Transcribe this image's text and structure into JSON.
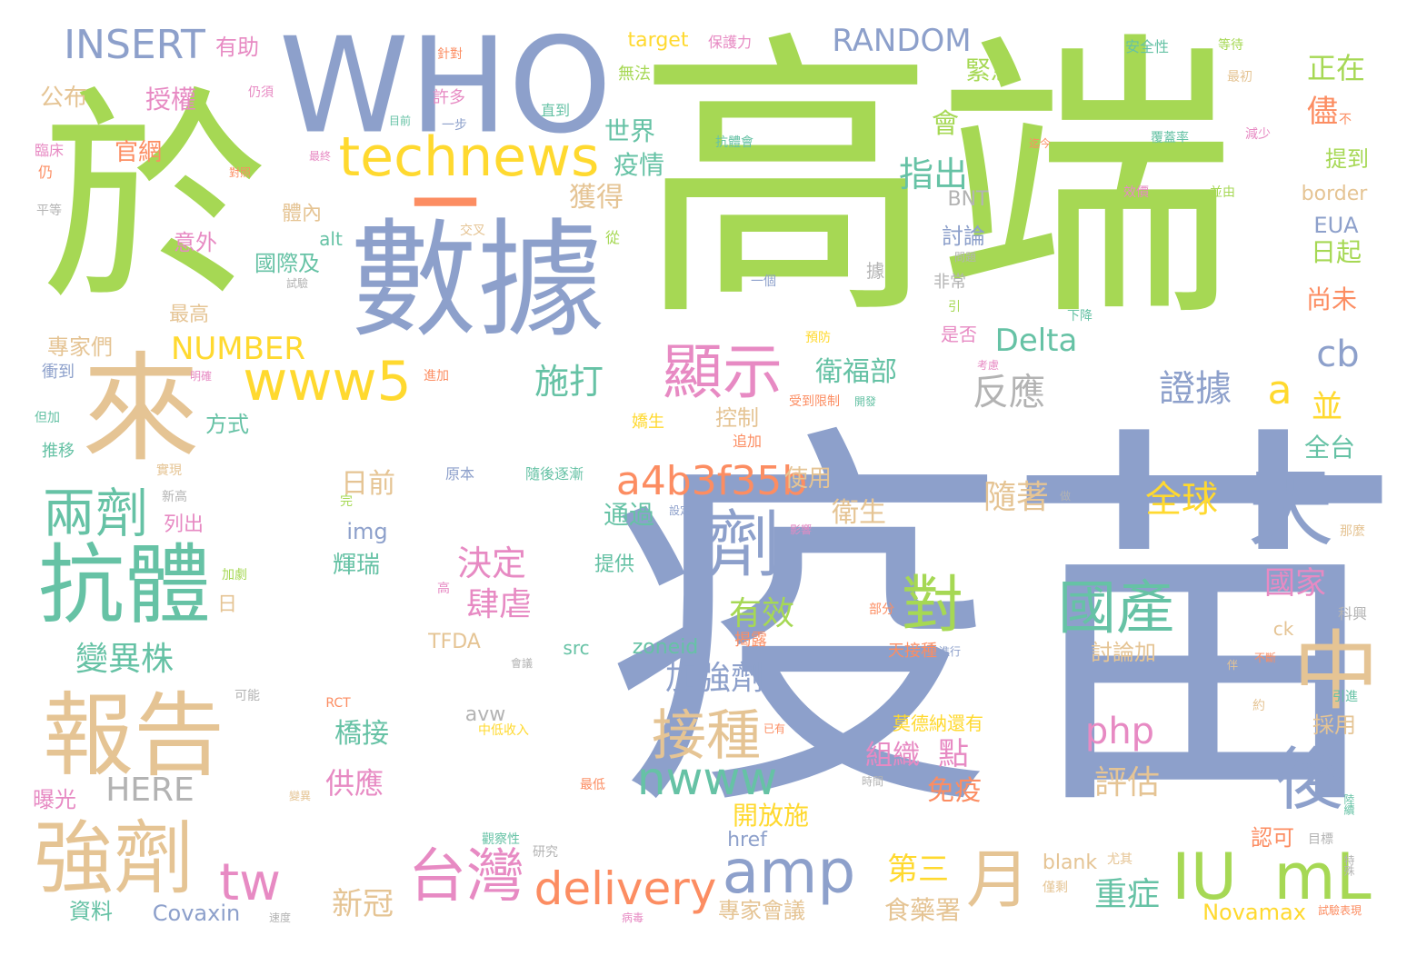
{
  "palette": {
    "slate_blue": "#8da0cb",
    "green": "#a6d854",
    "tan": "#e5c494",
    "pink": "#e78ac3",
    "yellow": "#ffd92f",
    "teal": "#66c2a5",
    "orange": "#fc8d62",
    "gray": "#b3b3b3"
  },
  "words": [
    {
      "text": "疫苗",
      "color": "#8da0cb"
    },
    {
      "text": "高端",
      "color": "#a6d854"
    },
    {
      "text": "於",
      "color": "#a6d854"
    },
    {
      "text": "WHO",
      "color": "#8da0cb"
    },
    {
      "text": "數據",
      "color": "#8da0cb"
    },
    {
      "text": "─",
      "color": "#fc8d62"
    },
    {
      "text": "來",
      "color": "#e5c494"
    },
    {
      "text": "抗體",
      "color": "#66c2a5"
    },
    {
      "text": "報告",
      "color": "#e5c494"
    },
    {
      "text": "強劑",
      "color": "#e5c494"
    },
    {
      "text": "兩劑",
      "color": "#66c2a5"
    },
    {
      "text": "technews",
      "color": "#ffd92f"
    },
    {
      "text": "www5",
      "color": "#ffd92f"
    },
    {
      "text": "顯示",
      "color": "#e78ac3"
    },
    {
      "text": "天",
      "color": "#8da0cb"
    },
    {
      "text": "劑",
      "color": "#8da0cb"
    },
    {
      "text": "中",
      "color": "#e5c494"
    },
    {
      "text": "後",
      "color": "#8da0cb"
    },
    {
      "text": "IU",
      "color": "#a6d854"
    },
    {
      "text": "mL",
      "color": "#a6d854"
    },
    {
      "text": "月",
      "color": "#e5c494"
    },
    {
      "text": "對",
      "color": "#a6d854"
    },
    {
      "text": "國產",
      "color": "#66c2a5"
    },
    {
      "text": "amp",
      "color": "#8da0cb"
    },
    {
      "text": "台灣",
      "color": "#e78ac3"
    },
    {
      "text": "delivery",
      "color": "#fc8d62"
    },
    {
      "text": "tw",
      "color": "#e78ac3"
    },
    {
      "text": "接種",
      "color": "#e5c494"
    },
    {
      "text": "a4b3f35b",
      "color": "#fc8d62"
    },
    {
      "text": "nwww",
      "color": "#66c2a5"
    },
    {
      "text": "INSERT",
      "color": "#8da0cb"
    },
    {
      "text": "RANDOM",
      "color": "#8da0cb"
    },
    {
      "text": "NUMBER",
      "color": "#ffd92f"
    },
    {
      "text": "HERE",
      "color": "#b3b3b3"
    },
    {
      "text": "Delta",
      "color": "#66c2a5"
    },
    {
      "text": "cb",
      "color": "#8da0cb"
    },
    {
      "text": "a",
      "color": "#ffd92f"
    },
    {
      "text": "php",
      "color": "#e78ac3"
    },
    {
      "text": "正在",
      "color": "#a6d854"
    },
    {
      "text": "儘",
      "color": "#fc8d62"
    },
    {
      "text": "緊急",
      "color": "#a6d854"
    },
    {
      "text": "會",
      "color": "#a6d854"
    },
    {
      "text": "世界",
      "color": "#66c2a5"
    },
    {
      "text": "疫情",
      "color": "#66c2a5"
    },
    {
      "text": "獲得",
      "color": "#e5c494"
    },
    {
      "text": "指出",
      "color": "#66c2a5"
    },
    {
      "text": "施打",
      "color": "#66c2a5"
    },
    {
      "text": "反應",
      "color": "#b3b3b3"
    },
    {
      "text": "衛福部",
      "color": "#66c2a5"
    },
    {
      "text": "證據",
      "color": "#8da0cb"
    },
    {
      "text": "全球",
      "color": "#ffd92f"
    },
    {
      "text": "國家",
      "color": "#e78ac3"
    },
    {
      "text": "並",
      "color": "#ffd92f"
    },
    {
      "text": "全台",
      "color": "#66c2a5"
    },
    {
      "text": "日起",
      "color": "#a6d854"
    },
    {
      "text": "尚未",
      "color": "#fc8d62"
    },
    {
      "text": "EUA",
      "color": "#8da0cb"
    },
    {
      "text": "BNT",
      "color": "#b3b3b3"
    },
    {
      "text": "border",
      "color": "#e5c494"
    },
    {
      "text": "提到",
      "color": "#a6d854"
    },
    {
      "text": "決定",
      "color": "#e78ac3"
    },
    {
      "text": "肆虐",
      "color": "#e78ac3"
    },
    {
      "text": "有效",
      "color": "#a6d854"
    },
    {
      "text": "加強劑",
      "color": "#8da0cb"
    },
    {
      "text": "變異株",
      "color": "#66c2a5"
    },
    {
      "text": "隨著",
      "color": "#e5c494"
    },
    {
      "text": "第三",
      "color": "#ffd92f"
    },
    {
      "text": "重症",
      "color": "#66c2a5"
    },
    {
      "text": "評估",
      "color": "#e5c494"
    },
    {
      "text": "組織",
      "color": "#e78ac3"
    },
    {
      "text": "點",
      "color": "#e78ac3"
    },
    {
      "text": "免疫",
      "color": "#fc8d62"
    },
    {
      "text": "供應",
      "color": "#e78ac3"
    },
    {
      "text": "新冠",
      "color": "#e5c494"
    },
    {
      "text": "食藥署",
      "color": "#e5c494"
    },
    {
      "text": "專家會議",
      "color": "#e5c494"
    },
    {
      "text": "Novamax",
      "color": "#ffd92f"
    },
    {
      "text": "Covaxin",
      "color": "#8da0cb"
    },
    {
      "text": "資料",
      "color": "#66c2a5"
    },
    {
      "text": "開放施",
      "color": "#ffd92f"
    },
    {
      "text": "橋接",
      "color": "#66c2a5"
    },
    {
      "text": "日前",
      "color": "#e5c494"
    },
    {
      "text": "使用",
      "color": "#e5c494"
    },
    {
      "text": "衛生",
      "color": "#e5c494"
    },
    {
      "text": "通過",
      "color": "#66c2a5"
    },
    {
      "text": "輝瑞",
      "color": "#66c2a5"
    },
    {
      "text": "img",
      "color": "#8da0cb"
    },
    {
      "text": "TFDA",
      "color": "#e5c494"
    },
    {
      "text": "src",
      "color": "#66c2a5"
    },
    {
      "text": "zoneid",
      "color": "#66c2a5"
    },
    {
      "text": "avw",
      "color": "#b3b3b3"
    },
    {
      "text": "href",
      "color": "#8da0cb"
    },
    {
      "text": "blank",
      "color": "#e5c494"
    },
    {
      "text": "target",
      "color": "#ffd92f"
    },
    {
      "text": "alt",
      "color": "#66c2a5"
    },
    {
      "text": "方式",
      "color": "#66c2a5"
    },
    {
      "text": "國際及",
      "color": "#66c2a5"
    },
    {
      "text": "意外",
      "color": "#e78ac3"
    },
    {
      "text": "體內",
      "color": "#e5c494"
    },
    {
      "text": "授權",
      "color": "#e78ac3"
    },
    {
      "text": "官網",
      "color": "#fc8d62"
    },
    {
      "text": "公布",
      "color": "#e5c494"
    },
    {
      "text": "有助",
      "color": "#e78ac3"
    },
    {
      "text": "最高",
      "color": "#e5c494"
    },
    {
      "text": "專家們",
      "color": "#e5c494"
    },
    {
      "text": "曝光",
      "color": "#e78ac3"
    },
    {
      "text": "衝到",
      "color": "#8da0cb"
    },
    {
      "text": "推移",
      "color": "#66c2a5"
    },
    {
      "text": "列出",
      "color": "#e78ac3"
    },
    {
      "text": "日",
      "color": "#e5c494"
    },
    {
      "text": "討論",
      "color": "#8da0cb"
    },
    {
      "text": "討論加",
      "color": "#e5c494"
    },
    {
      "text": "是否",
      "color": "#e78ac3"
    },
    {
      "text": "控制",
      "color": "#e5c494"
    },
    {
      "text": "提供",
      "color": "#66c2a5"
    },
    {
      "text": "採用",
      "color": "#e5c494"
    },
    {
      "text": "認可",
      "color": "#fc8d62"
    },
    {
      "text": "莫德納還有",
      "color": "#ffd92f"
    },
    {
      "text": "天接種",
      "color": "#fc8d62"
    },
    {
      "text": "揭露",
      "color": "#fc8d62"
    },
    {
      "text": "ck",
      "color": "#e5c494"
    },
    {
      "text": "據",
      "color": "#b3b3b3"
    },
    {
      "text": "非常",
      "color": "#b3b3b3"
    },
    {
      "text": "保護力",
      "color": "#e78ac3"
    },
    {
      "text": "安全性",
      "color": "#66c2a5"
    },
    {
      "text": "無法",
      "color": "#a6d854"
    },
    {
      "text": "許多",
      "color": "#e78ac3"
    },
    {
      "text": "一步",
      "color": "#8da0cb"
    },
    {
      "text": "直到",
      "color": "#66c2a5"
    },
    {
      "text": "針對",
      "color": "#fc8d62"
    },
    {
      "text": "仍須",
      "color": "#e78ac3"
    },
    {
      "text": "目前",
      "color": "#66c2a5"
    },
    {
      "text": "臨床",
      "color": "#e78ac3"
    },
    {
      "text": "仍",
      "color": "#fc8d62"
    },
    {
      "text": "平等",
      "color": "#b3b3b3"
    },
    {
      "text": "覆蓋率",
      "color": "#66c2a5"
    },
    {
      "text": "減少",
      "color": "#e78ac3"
    },
    {
      "text": "最初",
      "color": "#e5c494"
    },
    {
      "text": "等待",
      "color": "#a6d854"
    },
    {
      "text": "不",
      "color": "#fc8d62"
    },
    {
      "text": "效價",
      "color": "#e78ac3"
    },
    {
      "text": "並由",
      "color": "#a6d854"
    },
    {
      "text": "抗體會",
      "color": "#66c2a5"
    },
    {
      "text": "迄今",
      "color": "#fc8d62"
    },
    {
      "text": "最終",
      "color": "#e78ac3"
    },
    {
      "text": "對照",
      "color": "#fc8d62"
    },
    {
      "text": "交叉",
      "color": "#e5c494"
    },
    {
      "text": "從",
      "color": "#a6d854"
    },
    {
      "text": "更",
      "color": "#a6d854"
    },
    {
      "text": "一個",
      "color": "#8da0cb"
    },
    {
      "text": "問題",
      "color": "#b3b3b3"
    },
    {
      "text": "引",
      "color": "#a6d854"
    },
    {
      "text": "下降",
      "color": "#66c2a5"
    },
    {
      "text": "預防",
      "color": "#ffd92f"
    },
    {
      "text": "考慮",
      "color": "#e78ac3"
    },
    {
      "text": "受到限制",
      "color": "#fc8d62"
    },
    {
      "text": "開發",
      "color": "#66c2a5"
    },
    {
      "text": "追加",
      "color": "#fc8d62"
    },
    {
      "text": "嬌生",
      "color": "#ffd92f"
    },
    {
      "text": "試驗",
      "color": "#b3b3b3"
    },
    {
      "text": "明確",
      "color": "#e78ac3"
    },
    {
      "text": "進加",
      "color": "#fc8d62"
    },
    {
      "text": "但加",
      "color": "#66c2a5"
    },
    {
      "text": "實現",
      "color": "#e5c494"
    },
    {
      "text": "新高",
      "color": "#b3b3b3"
    },
    {
      "text": "原本",
      "color": "#8da0cb"
    },
    {
      "text": "隨後逐漸",
      "color": "#66c2a5"
    },
    {
      "text": "完",
      "color": "#a6d854"
    },
    {
      "text": "設定",
      "color": "#8da0cb"
    },
    {
      "text": "做",
      "color": "#b3b3b3"
    },
    {
      "text": "影響",
      "color": "#e78ac3"
    },
    {
      "text": "加劇",
      "color": "#a6d854"
    },
    {
      "text": "高",
      "color": "#e78ac3"
    },
    {
      "text": "部分",
      "color": "#fc8d62"
    },
    {
      "text": "進行",
      "color": "#8da0cb"
    },
    {
      "text": "會議",
      "color": "#b3b3b3"
    },
    {
      "text": "伴",
      "color": "#e5c494"
    },
    {
      "text": "不斷",
      "color": "#fc8d62"
    },
    {
      "text": "科興",
      "color": "#b3b3b3"
    },
    {
      "text": "那麼",
      "color": "#e5c494"
    },
    {
      "text": "引進",
      "color": "#66c2a5"
    },
    {
      "text": "約",
      "color": "#e5c494"
    },
    {
      "text": "可能",
      "color": "#b3b3b3"
    },
    {
      "text": "RCT",
      "color": "#fc8d62"
    },
    {
      "text": "中低收入",
      "color": "#ffd92f"
    },
    {
      "text": "已有",
      "color": "#fc8d62"
    },
    {
      "text": "最低",
      "color": "#fc8d62"
    },
    {
      "text": "時間",
      "color": "#b3b3b3"
    },
    {
      "text": "觀察性",
      "color": "#66c2a5"
    },
    {
      "text": "研究",
      "color": "#b3b3b3"
    },
    {
      "text": "僅剩",
      "color": "#e5c494"
    },
    {
      "text": "尤其",
      "color": "#e5c494"
    },
    {
      "text": "目標",
      "color": "#b3b3b3"
    },
    {
      "text": "試驗表現",
      "color": "#fc8d62"
    },
    {
      "text": "陸續",
      "color": "#66c2a5"
    },
    {
      "text": "特殊",
      "color": "#b3b3b3"
    },
    {
      "text": "病毒",
      "color": "#e78ac3"
    },
    {
      "text": "速度",
      "color": "#b3b3b3"
    },
    {
      "text": "變異",
      "color": "#e5c494"
    }
  ]
}
